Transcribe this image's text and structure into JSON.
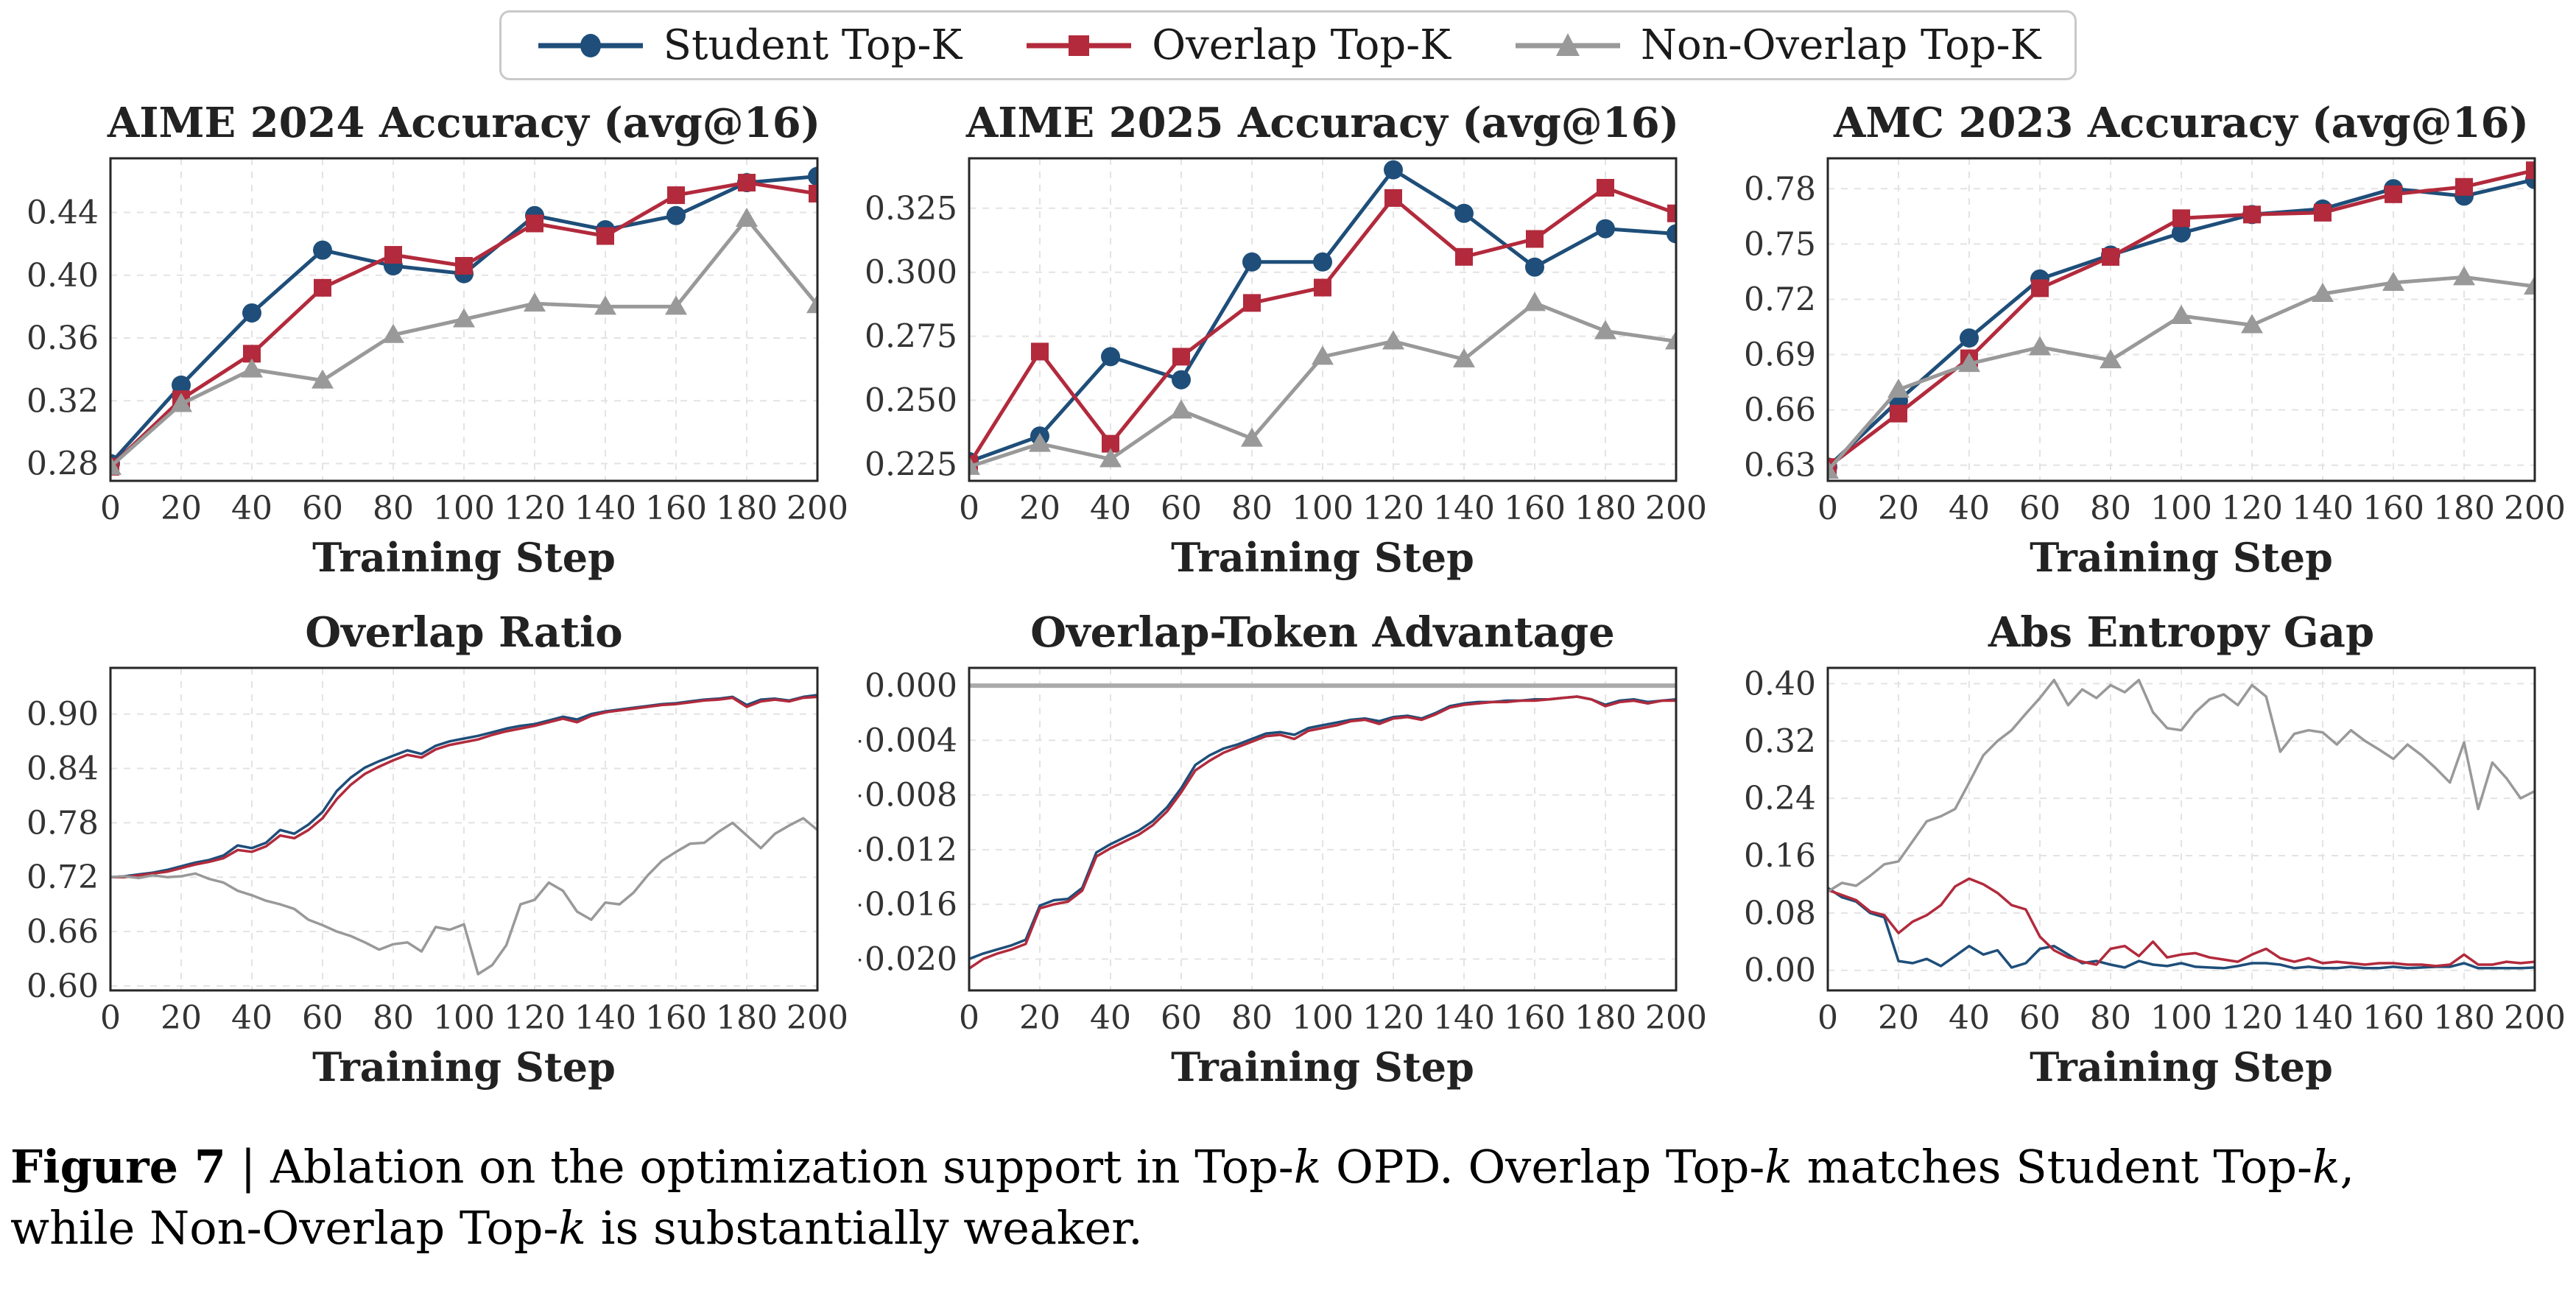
{
  "legend": {
    "items": [
      {
        "label": "Student Top-K",
        "marker": "circle",
        "color": "#1e4e79"
      },
      {
        "label": "Overlap Top-K",
        "marker": "square",
        "color": "#b22a3c"
      },
      {
        "label": "Non-Overlap Top-K",
        "marker": "triangle",
        "color": "#999999"
      }
    ]
  },
  "colors": {
    "student": "#1e4e79",
    "overlap": "#b22a3c",
    "nonoverlap": "#999999",
    "grid": "#e3e3e3",
    "spine": "#262626",
    "tick_text": "#333333",
    "zero_line": "#aaaaaa"
  },
  "caption": {
    "line1_segments": [
      {
        "t": "Figure 7",
        "style": "bold"
      },
      {
        "t": " | Ablation on the optimization support in Top-",
        "style": ""
      },
      {
        "t": "k",
        "style": "italic"
      },
      {
        "t": " OPD. Overlap Top-",
        "style": ""
      },
      {
        "t": "k",
        "style": "italic"
      },
      {
        "t": " matches Student Top-",
        "style": ""
      },
      {
        "t": "k",
        "style": "italic"
      },
      {
        "t": ",",
        "style": ""
      }
    ],
    "line2_segments": [
      {
        "t": "while Non-Overlap Top-",
        "style": ""
      },
      {
        "t": "k",
        "style": "italic"
      },
      {
        "t": " is substantially weaker.",
        "style": ""
      }
    ]
  },
  "chart_data": [
    {
      "type": "line",
      "title": "AIME 2024 Accuracy (avg@16)",
      "xlabel": "Training Step",
      "xlim": [
        0,
        200
      ],
      "xticks": [
        0,
        20,
        40,
        60,
        80,
        100,
        120,
        140,
        160,
        180,
        200
      ],
      "ylim": [
        0.269,
        0.4745
      ],
      "yticks": [
        0.28,
        0.32,
        0.36,
        0.4,
        0.44
      ],
      "ytick_labels": [
        "0.28",
        "0.32",
        "0.36",
        "0.40",
        "0.44"
      ],
      "zero_line": false,
      "series": [
        {
          "name": "Student Top-K",
          "key": "student",
          "marker": "circle",
          "x_start": 0,
          "x_step": 20,
          "values": [
            0.28,
            0.33,
            0.376,
            0.416,
            0.406,
            0.401,
            0.438,
            0.429,
            0.438,
            0.459,
            0.463
          ]
        },
        {
          "name": "Overlap Top-K",
          "key": "overlap",
          "marker": "square",
          "x_start": 0,
          "x_step": 20,
          "values": [
            0.278,
            0.321,
            0.35,
            0.392,
            0.413,
            0.406,
            0.433,
            0.425,
            0.451,
            0.459,
            0.452
          ]
        },
        {
          "name": "Non-Overlap Top-K",
          "key": "nonoverlap",
          "marker": "triangle",
          "x_start": 0,
          "x_step": 20,
          "values": [
            0.278,
            0.318,
            0.34,
            0.333,
            0.362,
            0.372,
            0.382,
            0.38,
            0.38,
            0.436,
            0.381
          ]
        }
      ]
    },
    {
      "type": "line",
      "title": "AIME 2025 Accuracy (avg@16)",
      "xlabel": "Training Step",
      "xlim": [
        0,
        200
      ],
      "xticks": [
        0,
        20,
        40,
        60,
        80,
        100,
        120,
        140,
        160,
        180,
        200
      ],
      "ylim": [
        0.2185,
        0.3445
      ],
      "yticks": [
        0.225,
        0.25,
        0.275,
        0.3,
        0.325
      ],
      "ytick_labels": [
        "0.225",
        "0.250",
        "0.275",
        "0.300",
        "0.325"
      ],
      "zero_line": false,
      "series": [
        {
          "name": "Student Top-K",
          "key": "student",
          "marker": "circle",
          "x_start": 0,
          "x_step": 20,
          "values": [
            0.226,
            0.236,
            0.267,
            0.258,
            0.304,
            0.304,
            0.34,
            0.323,
            0.302,
            0.317,
            0.315
          ]
        },
        {
          "name": "Overlap Top-K",
          "key": "overlap",
          "marker": "square",
          "x_start": 0,
          "x_step": 20,
          "values": [
            0.225,
            0.269,
            0.233,
            0.267,
            0.288,
            0.294,
            0.329,
            0.306,
            0.313,
            0.333,
            0.323
          ]
        },
        {
          "name": "Non-Overlap Top-K",
          "key": "nonoverlap",
          "marker": "triangle",
          "x_start": 0,
          "x_step": 20,
          "values": [
            0.224,
            0.233,
            0.227,
            0.246,
            0.235,
            0.267,
            0.273,
            0.266,
            0.288,
            0.277,
            0.273
          ]
        }
      ]
    },
    {
      "type": "line",
      "title": "AMC 2023 Accuracy (avg@16)",
      "xlabel": "Training Step",
      "xlim": [
        0,
        200
      ],
      "xticks": [
        0,
        20,
        40,
        60,
        80,
        100,
        120,
        140,
        160,
        180,
        200
      ],
      "ylim": [
        0.6215,
        0.7965
      ],
      "yticks": [
        0.63,
        0.66,
        0.69,
        0.72,
        0.75,
        0.78
      ],
      "ytick_labels": [
        "0.63",
        "0.66",
        "0.69",
        "0.72",
        "0.75",
        "0.78"
      ],
      "zero_line": false,
      "series": [
        {
          "name": "Student Top-K",
          "key": "student",
          "marker": "circle",
          "x_start": 0,
          "x_step": 20,
          "values": [
            0.629,
            0.665,
            0.699,
            0.731,
            0.744,
            0.756,
            0.766,
            0.769,
            0.78,
            0.776,
            0.785
          ]
        },
        {
          "name": "Overlap Top-K",
          "key": "overlap",
          "marker": "square",
          "x_start": 0,
          "x_step": 20,
          "values": [
            0.629,
            0.658,
            0.688,
            0.726,
            0.743,
            0.764,
            0.766,
            0.767,
            0.777,
            0.781,
            0.79
          ]
        },
        {
          "name": "Non-Overlap Top-K",
          "key": "nonoverlap",
          "marker": "triangle",
          "x_start": 0,
          "x_step": 20,
          "values": [
            0.627,
            0.671,
            0.685,
            0.694,
            0.687,
            0.711,
            0.706,
            0.723,
            0.729,
            0.732,
            0.727
          ]
        }
      ]
    },
    {
      "type": "line",
      "title": "Overlap Ratio",
      "xlabel": "Training Step",
      "xlim": [
        0,
        200
      ],
      "xticks": [
        0,
        20,
        40,
        60,
        80,
        100,
        120,
        140,
        160,
        180,
        200
      ],
      "ylim": [
        0.595,
        0.951
      ],
      "yticks": [
        0.6,
        0.66,
        0.72,
        0.78,
        0.84,
        0.9
      ],
      "ytick_labels": [
        "0.60",
        "0.66",
        "0.72",
        "0.78",
        "0.84",
        "0.90"
      ],
      "zero_line": false,
      "series": [
        {
          "name": "Student Top-K",
          "key": "student",
          "marker": null,
          "x_start": 0,
          "x_step": 4,
          "values": [
            0.72,
            0.721,
            0.723,
            0.725,
            0.728,
            0.732,
            0.736,
            0.739,
            0.744,
            0.755,
            0.752,
            0.758,
            0.772,
            0.768,
            0.778,
            0.792,
            0.815,
            0.83,
            0.841,
            0.848,
            0.854,
            0.86,
            0.856,
            0.865,
            0.87,
            0.873,
            0.876,
            0.88,
            0.884,
            0.887,
            0.889,
            0.893,
            0.897,
            0.894,
            0.9,
            0.903,
            0.905,
            0.907,
            0.909,
            0.911,
            0.912,
            0.914,
            0.916,
            0.917,
            0.919,
            0.91,
            0.916,
            0.917,
            0.915,
            0.919,
            0.921
          ]
        },
        {
          "name": "Overlap Top-K",
          "key": "overlap",
          "marker": null,
          "x_start": 0,
          "x_step": 4,
          "values": [
            0.72,
            0.72,
            0.722,
            0.724,
            0.726,
            0.73,
            0.734,
            0.737,
            0.741,
            0.75,
            0.748,
            0.754,
            0.766,
            0.763,
            0.772,
            0.785,
            0.806,
            0.822,
            0.834,
            0.842,
            0.849,
            0.855,
            0.852,
            0.861,
            0.866,
            0.869,
            0.872,
            0.877,
            0.881,
            0.884,
            0.887,
            0.891,
            0.895,
            0.891,
            0.898,
            0.902,
            0.904,
            0.906,
            0.908,
            0.91,
            0.911,
            0.913,
            0.915,
            0.916,
            0.918,
            0.908,
            0.914,
            0.916,
            0.914,
            0.918,
            0.919
          ]
        },
        {
          "name": "Non-Overlap Top-K",
          "key": "nonoverlap",
          "marker": null,
          "x_start": 0,
          "x_step": 4,
          "values": [
            0.72,
            0.721,
            0.719,
            0.722,
            0.72,
            0.721,
            0.724,
            0.718,
            0.714,
            0.705,
            0.7,
            0.694,
            0.69,
            0.685,
            0.673,
            0.667,
            0.66,
            0.655,
            0.648,
            0.64,
            0.646,
            0.648,
            0.638,
            0.665,
            0.662,
            0.668,
            0.613,
            0.623,
            0.645,
            0.69,
            0.695,
            0.714,
            0.705,
            0.682,
            0.673,
            0.692,
            0.69,
            0.703,
            0.722,
            0.738,
            0.748,
            0.757,
            0.758,
            0.77,
            0.78,
            0.766,
            0.752,
            0.768,
            0.777,
            0.785,
            0.772
          ]
        }
      ]
    },
    {
      "type": "line",
      "title": "Overlap-Token Advantage",
      "xlabel": "Training Step",
      "xlim": [
        0,
        200
      ],
      "xticks": [
        0,
        20,
        40,
        60,
        80,
        100,
        120,
        140,
        160,
        180,
        200
      ],
      "ylim": [
        -0.0223,
        0.0013
      ],
      "yticks": [
        0.0,
        -0.004,
        -0.008,
        -0.012,
        -0.016,
        -0.02
      ],
      "ytick_labels": [
        "0.000",
        "−0.004",
        "−0.008",
        "−0.012",
        "−0.016",
        "−0.020"
      ],
      "zero_line": true,
      "series": [
        {
          "name": "Student Top-K",
          "key": "student",
          "marker": null,
          "x_start": 0,
          "x_step": 4,
          "values": [
            -0.02,
            -0.0196,
            -0.0193,
            -0.019,
            -0.0186,
            -0.0161,
            -0.0157,
            -0.0156,
            -0.0148,
            -0.0122,
            -0.0116,
            -0.0111,
            -0.0106,
            -0.0099,
            -0.0089,
            -0.0075,
            -0.0058,
            -0.0051,
            -0.0046,
            -0.0043,
            -0.0039,
            -0.0035,
            -0.0034,
            -0.0036,
            -0.0031,
            -0.0029,
            -0.0027,
            -0.0025,
            -0.0024,
            -0.0026,
            -0.0023,
            -0.0022,
            -0.0024,
            -0.002,
            -0.0015,
            -0.0013,
            -0.0012,
            -0.0012,
            -0.0011,
            -0.0011,
            -0.001,
            -0.001,
            -0.0009,
            -0.0008,
            -0.001,
            -0.0014,
            -0.0011,
            -0.001,
            -0.0012,
            -0.0011,
            -0.001
          ]
        },
        {
          "name": "Overlap Top-K",
          "key": "overlap",
          "marker": null,
          "x_start": 0,
          "x_step": 4,
          "values": [
            -0.0207,
            -0.02,
            -0.0196,
            -0.0193,
            -0.0189,
            -0.0163,
            -0.016,
            -0.0158,
            -0.015,
            -0.0125,
            -0.0119,
            -0.0114,
            -0.0109,
            -0.0102,
            -0.0092,
            -0.0078,
            -0.0062,
            -0.0055,
            -0.0049,
            -0.0045,
            -0.0041,
            -0.0037,
            -0.0036,
            -0.0039,
            -0.0033,
            -0.0031,
            -0.0029,
            -0.0026,
            -0.0025,
            -0.0028,
            -0.0024,
            -0.0023,
            -0.0025,
            -0.0021,
            -0.0016,
            -0.0014,
            -0.0013,
            -0.0012,
            -0.0012,
            -0.0011,
            -0.0011,
            -0.001,
            -0.0009,
            -0.0008,
            -0.001,
            -0.0015,
            -0.0012,
            -0.0011,
            -0.0013,
            -0.0011,
            -0.0011
          ]
        }
      ]
    },
    {
      "type": "line",
      "title": "Abs Entropy Gap",
      "xlabel": "Training Step",
      "xlim": [
        0,
        200
      ],
      "xticks": [
        0,
        20,
        40,
        60,
        80,
        100,
        120,
        140,
        160,
        180,
        200
      ],
      "ylim": [
        -0.028,
        0.422
      ],
      "yticks": [
        0.0,
        0.08,
        0.16,
        0.24,
        0.32,
        0.4
      ],
      "ytick_labels": [
        "0.00",
        "0.08",
        "0.16",
        "0.24",
        "0.32",
        "0.40"
      ],
      "zero_line": false,
      "series": [
        {
          "name": "Student Top-K",
          "key": "student",
          "marker": null,
          "x_start": 0,
          "x_step": 4,
          "values": [
            0.115,
            0.102,
            0.096,
            0.08,
            0.074,
            0.013,
            0.01,
            0.016,
            0.006,
            0.02,
            0.034,
            0.022,
            0.028,
            0.004,
            0.01,
            0.03,
            0.034,
            0.022,
            0.01,
            0.013,
            0.008,
            0.004,
            0.013,
            0.008,
            0.006,
            0.01,
            0.005,
            0.004,
            0.003,
            0.006,
            0.01,
            0.01,
            0.008,
            0.003,
            0.005,
            0.003,
            0.003,
            0.005,
            0.003,
            0.003,
            0.005,
            0.003,
            0.004,
            0.005,
            0.005,
            0.01,
            0.003,
            0.003,
            0.003,
            0.003,
            0.004
          ]
        },
        {
          "name": "Overlap Top-K",
          "key": "overlap",
          "marker": null,
          "x_start": 0,
          "x_step": 4,
          "values": [
            0.112,
            0.105,
            0.098,
            0.082,
            0.077,
            0.052,
            0.068,
            0.077,
            0.091,
            0.117,
            0.128,
            0.12,
            0.108,
            0.091,
            0.085,
            0.047,
            0.028,
            0.018,
            0.012,
            0.008,
            0.03,
            0.034,
            0.02,
            0.04,
            0.018,
            0.022,
            0.024,
            0.018,
            0.015,
            0.012,
            0.022,
            0.03,
            0.017,
            0.012,
            0.017,
            0.01,
            0.012,
            0.01,
            0.008,
            0.01,
            0.01,
            0.008,
            0.008,
            0.006,
            0.008,
            0.022,
            0.008,
            0.008,
            0.012,
            0.01,
            0.012
          ]
        },
        {
          "name": "Non-Overlap Top-K",
          "key": "nonoverlap",
          "marker": null,
          "x_start": 0,
          "x_step": 4,
          "values": [
            0.11,
            0.122,
            0.118,
            0.132,
            0.148,
            0.152,
            0.18,
            0.208,
            0.215,
            0.225,
            0.262,
            0.3,
            0.32,
            0.335,
            0.358,
            0.38,
            0.405,
            0.37,
            0.392,
            0.38,
            0.398,
            0.388,
            0.405,
            0.36,
            0.338,
            0.335,
            0.36,
            0.378,
            0.385,
            0.37,
            0.398,
            0.382,
            0.305,
            0.33,
            0.335,
            0.332,
            0.315,
            0.335,
            0.32,
            0.308,
            0.295,
            0.315,
            0.3,
            0.282,
            0.262,
            0.318,
            0.225,
            0.29,
            0.268,
            0.24,
            0.25
          ]
        }
      ]
    }
  ]
}
